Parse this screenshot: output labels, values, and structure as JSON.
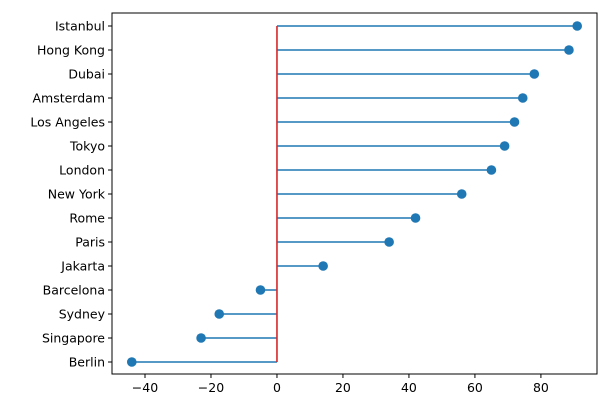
{
  "chart_data": {
    "type": "lollipop",
    "orientation": "horizontal",
    "categories": [
      "Istanbul",
      "Hong Kong",
      "Dubai",
      "Amsterdam",
      "Los Angeles",
      "Tokyo",
      "London",
      "New York",
      "Rome",
      "Paris",
      "Jakarta",
      "Barcelona",
      "Sydney",
      "Singapore",
      "Berlin"
    ],
    "values": [
      91,
      88.5,
      78,
      74.5,
      72,
      69,
      65,
      56,
      42,
      34,
      14,
      -5,
      -17.5,
      -23,
      -44
    ],
    "title": "",
    "xlabel": "",
    "ylabel": "",
    "xlim": [
      -50,
      97
    ],
    "xticks": [
      -40,
      -20,
      0,
      20,
      40,
      60,
      80
    ],
    "grid": false,
    "baseline": 0,
    "colors": {
      "stem": "#1f77b4",
      "marker": "#1f77b4",
      "baseline": "#d62728",
      "axes": "#000000"
    }
  }
}
